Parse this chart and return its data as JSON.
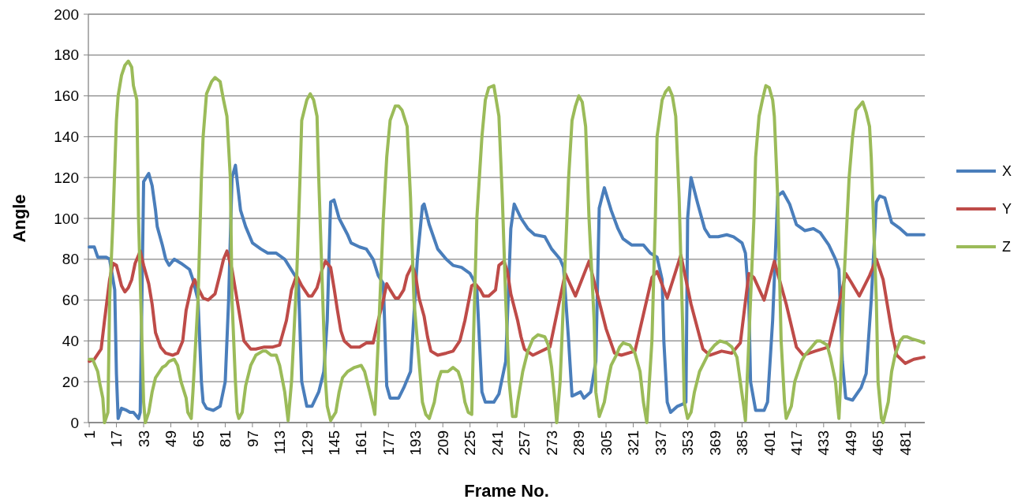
{
  "chart_data": {
    "type": "line",
    "xlabel": "Frame No.",
    "ylabel": "Angle",
    "xlim": [
      0.5,
      492.5
    ],
    "xticks": [
      1,
      17,
      33,
      49,
      65,
      81,
      97,
      113,
      129,
      145,
      161,
      177,
      193,
      209,
      225,
      241,
      257,
      273,
      289,
      305,
      321,
      337,
      353,
      369,
      385,
      401,
      417,
      433,
      449,
      465,
      481
    ],
    "ylim": [
      0,
      200
    ],
    "yticks": [
      0,
      20,
      40,
      60,
      80,
      100,
      120,
      140,
      160,
      180,
      200
    ],
    "grid": "y",
    "legend": "right",
    "marker": "none",
    "line_style": "solid",
    "series": [
      {
        "name": "X",
        "color": "#4a7ebb",
        "x": [
          1,
          4,
          6,
          11,
          13,
          16,
          17,
          18,
          20,
          23,
          25,
          27,
          30,
          31,
          33,
          36,
          38,
          40,
          41,
          44,
          46,
          48,
          51,
          55,
          60,
          62,
          65,
          67,
          68,
          70,
          74,
          78,
          81,
          83,
          85,
          87,
          90,
          93,
          97,
          102,
          106,
          111,
          116,
          119,
          122,
          124,
          126,
          129,
          132,
          136,
          139,
          141,
          143,
          145,
          148,
          153,
          155,
          160,
          164,
          168,
          171,
          174,
          176,
          178,
          183,
          186,
          190,
          194,
          197,
          198,
          201,
          206,
          211,
          215,
          220,
          225,
          227,
          229,
          232,
          234,
          239,
          242,
          246,
          249,
          251,
          255,
          259,
          263,
          269,
          273,
          278,
          280,
          283,
          285,
          290,
          292,
          296,
          299,
          301,
          304,
          308,
          312,
          315,
          320,
          327,
          331,
          335,
          338,
          339,
          341,
          343,
          347,
          350,
          352,
          353,
          355,
          359,
          363,
          366,
          371,
          376,
          380,
          385,
          387,
          389,
          390,
          393,
          398,
          400,
          403,
          406,
          409,
          413,
          417,
          422,
          427,
          431,
          436,
          440,
          442,
          444,
          446,
          450,
          455,
          458,
          461,
          464,
          466,
          469,
          473,
          478,
          482,
          492
        ],
        "values": [
          86,
          86,
          81,
          81,
          80,
          65,
          24,
          2,
          7,
          6,
          5,
          5,
          2,
          5,
          118,
          122,
          116,
          104,
          96,
          87,
          80,
          77,
          80,
          78,
          75,
          70,
          60,
          20,
          10,
          7,
          6,
          8,
          20,
          60,
          120,
          126,
          104,
          96,
          88,
          85,
          83,
          83,
          80,
          76,
          72,
          70,
          20,
          8,
          8,
          15,
          25,
          50,
          108,
          109,
          100,
          92,
          88,
          86,
          85,
          80,
          72,
          68,
          18,
          12,
          12,
          17,
          25,
          80,
          106,
          107,
          97,
          85,
          80,
          77,
          76,
          73,
          70,
          66,
          15,
          10,
          10,
          14,
          30,
          95,
          107,
          100,
          95,
          92,
          91,
          85,
          80,
          76,
          40,
          13,
          15,
          12,
          15,
          30,
          105,
          115,
          104,
          95,
          90,
          87,
          87,
          83,
          81,
          70,
          40,
          10,
          5,
          8,
          9,
          10,
          100,
          120,
          107,
          95,
          91,
          91,
          92,
          91,
          88,
          83,
          60,
          20,
          6,
          6,
          10,
          50,
          111,
          113,
          107,
          97,
          94,
          95,
          93,
          87,
          80,
          75,
          30,
          12,
          11,
          17,
          24,
          60,
          108,
          111,
          110,
          98,
          95,
          92,
          92
        ]
      },
      {
        "name": "Y",
        "color": "#be4b48",
        "x": [
          1,
          4,
          8,
          10,
          13,
          15,
          17,
          20,
          22,
          24,
          26,
          28,
          31,
          33,
          36,
          38,
          40,
          43,
          46,
          50,
          53,
          56,
          58,
          61,
          63,
          65,
          68,
          71,
          75,
          78,
          80,
          82,
          85,
          88,
          90,
          92,
          96,
          99,
          104,
          109,
          113,
          117,
          120,
          123,
          126,
          130,
          132,
          135,
          138,
          140,
          143,
          145,
          147,
          149,
          151,
          155,
          160,
          164,
          168,
          171,
          174,
          176,
          178,
          181,
          183,
          186,
          188,
          191,
          193,
          195,
          198,
          200,
          202,
          206,
          211,
          215,
          219,
          222,
          226,
          228,
          231,
          233,
          236,
          240,
          242,
          245,
          247,
          249,
          253,
          255,
          257,
          262,
          272,
          281,
          287,
          295,
          305,
          310,
          314,
          322,
          327,
          332,
          335,
          341,
          349,
          355,
          362,
          366,
          373,
          379,
          384,
          389,
          392,
          398,
          404,
          411,
          417,
          421,
          428,
          436,
          442,
          446,
          449,
          454,
          460,
          464,
          468,
          473,
          476,
          481,
          486,
          492
        ],
        "values": [
          30,
          31,
          36,
          50,
          70,
          78,
          77,
          67,
          64,
          66,
          70,
          78,
          84,
          77,
          68,
          58,
          44,
          37,
          34,
          33,
          34,
          40,
          55,
          66,
          70,
          66,
          61,
          60,
          63,
          73,
          80,
          84,
          75,
          60,
          50,
          40,
          36,
          36,
          37,
          37,
          38,
          50,
          65,
          72,
          67,
          62,
          62,
          66,
          75,
          79,
          76,
          66,
          55,
          45,
          40,
          37,
          37,
          39,
          39,
          50,
          60,
          68,
          65,
          61,
          61,
          65,
          72,
          77,
          72,
          61,
          52,
          42,
          35,
          33,
          34,
          35,
          40,
          50,
          67,
          68,
          65,
          62,
          62,
          65,
          77,
          79,
          74,
          63,
          50,
          42,
          36,
          33,
          37,
          73,
          62,
          79,
          46,
          34,
          33,
          35,
          53,
          71,
          74,
          61,
          82,
          58,
          36,
          33,
          35,
          34,
          39,
          73,
          71,
          60,
          79,
          58,
          37,
          33,
          35,
          37,
          58,
          73,
          69,
          62,
          72,
          80,
          70,
          45,
          33,
          29,
          31,
          32
        ]
      },
      {
        "name": "Z",
        "color": "#9bbb59",
        "x": [
          1,
          3,
          6,
          7,
          9,
          10,
          12,
          13,
          15,
          17,
          18,
          20,
          22,
          24,
          26,
          27,
          29,
          30,
          32,
          33,
          34,
          36,
          38,
          40,
          44,
          46,
          48,
          51,
          53,
          55,
          58,
          59,
          61,
          62,
          65,
          67,
          68,
          70,
          73,
          75,
          78,
          80,
          82,
          84,
          85,
          87,
          88,
          89,
          91,
          93,
          96,
          99,
          103,
          105,
          108,
          111,
          113,
          116,
          118,
          120,
          123,
          125,
          126,
          129,
          131,
          133,
          135,
          136,
          138,
          140,
          141,
          143,
          146,
          148,
          150,
          153,
          157,
          161,
          163,
          166,
          168,
          169,
          171,
          174,
          176,
          178,
          181,
          183,
          185,
          188,
          190,
          192,
          195,
          197,
          199,
          201,
          204,
          206,
          208,
          212,
          215,
          218,
          220,
          222,
          224,
          226,
          227,
          229,
          232,
          234,
          236,
          239,
          240,
          242,
          244,
          246,
          248,
          250,
          252,
          253,
          256,
          259,
          262,
          265,
          269,
          271,
          273,
          275,
          276,
          278,
          280,
          283,
          285,
          287,
          289,
          291,
          293,
          295,
          298,
          299,
          301,
          304,
          306,
          308,
          311,
          313,
          315,
          319,
          322,
          325,
          327,
          329,
          332,
          334,
          335,
          338,
          340,
          342,
          344,
          346,
          348,
          350,
          351,
          353,
          355,
          357,
          360,
          363,
          366,
          369,
          372,
          376,
          379,
          382,
          384,
          386,
          387,
          389,
          392,
          393,
          395,
          397,
          399,
          401,
          403,
          404,
          406,
          408,
          410,
          411,
          414,
          416,
          420,
          422,
          427,
          429,
          431,
          435,
          437,
          440,
          441,
          442,
          443,
          445,
          448,
          450,
          452,
          455,
          456,
          458,
          460,
          461,
          464,
          465,
          467,
          468,
          471,
          473,
          475,
          478,
          480,
          482,
          485,
          489,
          492
        ],
        "values": [
          31,
          31,
          25,
          20,
          12,
          0,
          5,
          60,
          100,
          148,
          160,
          170,
          175,
          177,
          174,
          165,
          158,
          100,
          40,
          10,
          0,
          5,
          15,
          22,
          27,
          28,
          30,
          31,
          28,
          20,
          12,
          5,
          2,
          15,
          60,
          120,
          140,
          161,
          167,
          169,
          167,
          158,
          150,
          120,
          60,
          20,
          5,
          2,
          5,
          18,
          28,
          33,
          35,
          35,
          33,
          33,
          28,
          15,
          1,
          20,
          70,
          120,
          148,
          158,
          161,
          158,
          150,
          120,
          70,
          20,
          8,
          1,
          5,
          15,
          22,
          25,
          27,
          28,
          25,
          15,
          8,
          4,
          40,
          100,
          130,
          148,
          155,
          155,
          153,
          145,
          110,
          60,
          30,
          10,
          4,
          2,
          10,
          20,
          25,
          25,
          27,
          25,
          20,
          10,
          5,
          4,
          40,
          100,
          140,
          158,
          164,
          165,
          160,
          150,
          110,
          60,
          20,
          3,
          3,
          10,
          25,
          35,
          41,
          43,
          42,
          38,
          27,
          10,
          0,
          20,
          60,
          120,
          148,
          155,
          160,
          157,
          145,
          100,
          50,
          15,
          3,
          10,
          20,
          28,
          33,
          37,
          39,
          38,
          34,
          25,
          10,
          0,
          40,
          100,
          140,
          158,
          162,
          164,
          160,
          150,
          110,
          50,
          10,
          2,
          5,
          15,
          25,
          30,
          35,
          38,
          40,
          39,
          37,
          32,
          20,
          8,
          1,
          40,
          100,
          130,
          150,
          158,
          165,
          164,
          158,
          150,
          110,
          40,
          10,
          2,
          8,
          20,
          30,
          33,
          38,
          40,
          40,
          38,
          32,
          20,
          10,
          2,
          20,
          70,
          120,
          140,
          153,
          156,
          157,
          152,
          145,
          130,
          60,
          20,
          2,
          0,
          10,
          25,
          33,
          40,
          42,
          42,
          41,
          40,
          39
        ]
      }
    ]
  }
}
